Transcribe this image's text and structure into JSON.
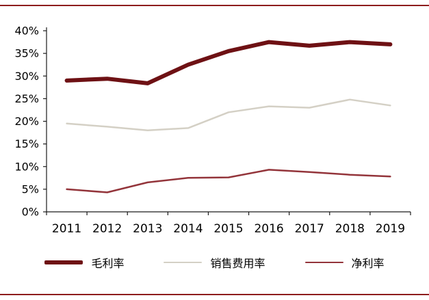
{
  "frame": {
    "accent_color": "#8d1c1c",
    "background": "#ffffff",
    "text_color": "#000000"
  },
  "chart_data": {
    "type": "line",
    "title": "",
    "xlabel": "",
    "ylabel": "",
    "categories": [
      "2011",
      "2012",
      "2013",
      "2014",
      "2015",
      "2016",
      "2017",
      "2018",
      "2019"
    ],
    "series": [
      {
        "name": "毛利率",
        "color": "#6e1114",
        "width": 6,
        "values": [
          29.0,
          29.4,
          28.4,
          32.5,
          35.5,
          37.5,
          36.7,
          37.5,
          37.0
        ]
      },
      {
        "name": "销售费用率",
        "color": "#d4d0c5",
        "width": 2.5,
        "values": [
          19.5,
          18.8,
          18.0,
          18.5,
          22.0,
          23.3,
          23.0,
          24.8,
          23.5
        ]
      },
      {
        "name": "净利率",
        "color": "#93343a",
        "width": 2.5,
        "values": [
          5.0,
          4.3,
          6.5,
          7.5,
          7.6,
          9.3,
          8.8,
          8.2,
          7.8
        ]
      }
    ],
    "ylim": [
      0,
      40
    ],
    "ytick_step": 5,
    "ytick_suffix": "%",
    "grid": false,
    "legend_position": "bottom"
  }
}
